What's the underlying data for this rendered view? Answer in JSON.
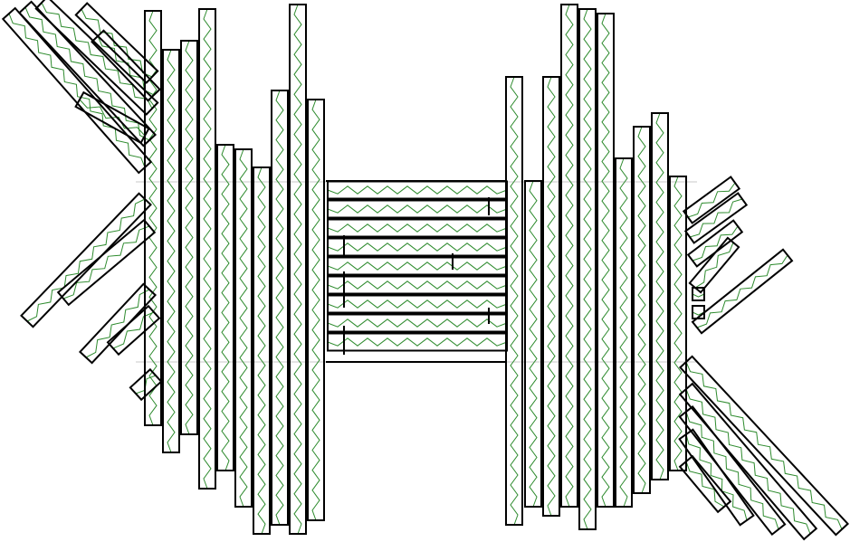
{
  "diagram": {
    "kind": "fractal-corridor-tiling",
    "background": "#ffffff",
    "colors": {
      "wall": "#000000",
      "path": "#2e8b2e",
      "guide": "#c8c8c8"
    },
    "legend": [],
    "labels": []
  }
}
